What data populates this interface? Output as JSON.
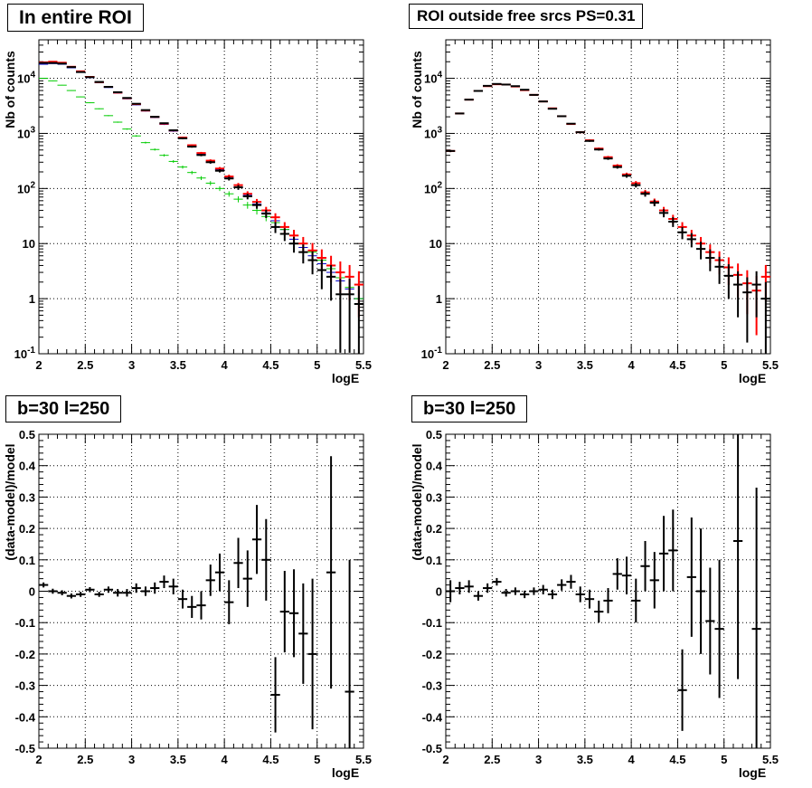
{
  "colors": {
    "data": "#000000",
    "total_model": "#ff0000",
    "blue_component": "#0000cc",
    "green_component": "#00cc00",
    "grid": "#000000"
  },
  "panels": [
    {
      "title": "In entire ROI",
      "xlabel": "logE",
      "ylabel": "Nb of counts"
    },
    {
      "title": "ROI outside free srcs PS=0.31",
      "xlabel": "logE",
      "ylabel": "Nb of counts"
    },
    {
      "title": "b=30 l=250",
      "xlabel": "logE",
      "ylabel": "(data-model)/model"
    },
    {
      "title": "b=30 l=250",
      "xlabel": "logE",
      "ylabel": "(data-model)/model"
    }
  ],
  "chart_data": [
    {
      "type": "scatter",
      "title": "In entire ROI",
      "xlabel": "logE",
      "ylabel": "Nb of counts",
      "xlim": [
        2,
        5.5
      ],
      "ylim": [
        0.1,
        50000
      ],
      "yscale": "log",
      "grid": true,
      "xticks": [
        "2",
        "2.5",
        "3",
        "3.5",
        "4",
        "4.5",
        "5",
        "5.5"
      ],
      "yticks": [
        "10^-1",
        "1",
        "10",
        "10^2",
        "10^3",
        "10^4"
      ],
      "bin_width": 0.1,
      "series": [
        {
          "role": "data",
          "color": "#000000",
          "errors": true,
          "x": [
            2.05,
            2.15,
            2.25,
            2.35,
            2.45,
            2.55,
            2.65,
            2.75,
            2.85,
            2.95,
            3.05,
            3.15,
            3.25,
            3.35,
            3.45,
            3.55,
            3.65,
            3.75,
            3.85,
            3.95,
            4.05,
            4.15,
            4.25,
            4.35,
            4.45,
            4.55,
            4.65,
            4.75,
            4.85,
            4.95,
            5.05,
            5.15,
            5.25,
            5.35,
            5.45
          ],
          "y": [
            19000,
            19000,
            18500,
            16000,
            13000,
            10500,
            8600,
            7000,
            5600,
            4400,
            3450,
            2650,
            2000,
            1530,
            1140,
            815,
            575,
            405,
            300,
            210,
            152,
            105,
            72,
            50,
            35,
            20,
            15,
            10,
            7,
            5,
            3.3,
            2.5,
            1.2,
            1.2,
            0.8
          ]
        },
        {
          "role": "total model",
          "color": "#ff0000",
          "errors": true,
          "x": [
            2.05,
            2.15,
            2.25,
            2.35,
            2.45,
            2.55,
            2.65,
            2.75,
            2.85,
            2.95,
            3.05,
            3.15,
            3.25,
            3.35,
            3.45,
            3.55,
            3.65,
            3.75,
            3.85,
            3.95,
            4.05,
            4.15,
            4.25,
            4.35,
            4.45,
            4.55,
            4.65,
            4.75,
            4.85,
            4.95,
            5.05,
            5.15,
            5.25,
            5.35,
            5.45
          ],
          "y": [
            19500,
            20000,
            19200,
            16200,
            13400,
            10600,
            8500,
            7000,
            5500,
            4350,
            3400,
            2600,
            1990,
            1500,
            1130,
            840,
            610,
            440,
            320,
            230,
            165,
            115,
            80,
            57,
            40,
            30,
            20,
            14,
            10,
            7.5,
            5.5,
            4,
            3,
            2.5,
            1.8
          ]
        },
        {
          "role": "blue component",
          "color": "#0000cc",
          "errors": true,
          "x": [
            2.05,
            2.15,
            2.25,
            2.35,
            2.45,
            2.55,
            2.65,
            2.75,
            2.85,
            2.95,
            3.05,
            3.15,
            3.25,
            3.35,
            3.45,
            3.55,
            3.65,
            3.75,
            3.85,
            3.95,
            4.05,
            4.15,
            4.25,
            4.35,
            4.45,
            4.55,
            4.65,
            4.75,
            4.85,
            4.95,
            5.05,
            5.15,
            5.25,
            5.35,
            5.45
          ],
          "y": [
            18000,
            18500,
            18000,
            15500,
            12800,
            10300,
            8300,
            6800,
            5400,
            4250,
            3300,
            2550,
            1940,
            1460,
            1100,
            810,
            590,
            420,
            300,
            220,
            155,
            105,
            75,
            52,
            36,
            26,
            18,
            12,
            8.5,
            6,
            4.3,
            3,
            2.1,
            1.5,
            1
          ]
        },
        {
          "role": "green component",
          "color": "#00cc00",
          "errors": true,
          "x": [
            2.05,
            2.15,
            2.25,
            2.35,
            2.45,
            2.55,
            2.65,
            2.75,
            2.85,
            2.95,
            3.05,
            3.15,
            3.25,
            3.35,
            3.45,
            3.55,
            3.65,
            3.75,
            3.85,
            3.95,
            4.05,
            4.15,
            4.25,
            4.35,
            4.45,
            4.55,
            4.65,
            4.75,
            4.85,
            4.95,
            5.05,
            5.15,
            5.25,
            5.35,
            5.45
          ],
          "y": [
            10000,
            9000,
            7500,
            6000,
            4600,
            3600,
            2800,
            2100,
            1600,
            1200,
            900,
            680,
            510,
            400,
            310,
            245,
            195,
            155,
            125,
            100,
            80,
            64,
            50,
            40,
            31,
            24,
            18,
            14,
            10,
            7,
            5,
            3.5,
            2.4,
            1.6,
            1
          ]
        }
      ]
    },
    {
      "type": "scatter",
      "title": "ROI outside free srcs PS=0.31",
      "xlabel": "logE",
      "ylabel": "Nb of counts",
      "xlim": [
        2,
        5.5
      ],
      "ylim": [
        0.1,
        50000
      ],
      "yscale": "log",
      "grid": true,
      "xticks": [
        "2",
        "2.5",
        "3",
        "3.5",
        "4",
        "4.5",
        "5",
        "5.5"
      ],
      "yticks": [
        "10^-1",
        "1",
        "10",
        "10^2",
        "10^3",
        "10^4"
      ],
      "bin_width": 0.1,
      "series": [
        {
          "role": "data",
          "color": "#000000",
          "errors": true,
          "x": [
            2.05,
            2.15,
            2.25,
            2.35,
            2.45,
            2.55,
            2.65,
            2.75,
            2.85,
            2.95,
            3.05,
            3.15,
            3.25,
            3.35,
            3.45,
            3.55,
            3.65,
            3.75,
            3.85,
            3.95,
            4.05,
            4.15,
            4.25,
            4.35,
            4.45,
            4.55,
            4.65,
            4.75,
            4.85,
            4.95,
            5.05,
            5.15,
            5.25,
            5.35,
            5.45
          ],
          "y": [
            480,
            2300,
            4100,
            5900,
            7300,
            7900,
            7700,
            7200,
            6200,
            5000,
            3800,
            2800,
            2050,
            1500,
            1050,
            730,
            510,
            350,
            245,
            170,
            115,
            80,
            55,
            36,
            25,
            16,
            12,
            8,
            5.5,
            3.8,
            2.6,
            1.8,
            1.3,
            1.8,
            1
          ]
        },
        {
          "role": "total model",
          "color": "#ff0000",
          "errors": true,
          "x": [
            2.05,
            2.15,
            2.25,
            2.35,
            2.45,
            2.55,
            2.65,
            2.75,
            2.85,
            2.95,
            3.05,
            3.15,
            3.25,
            3.35,
            3.45,
            3.55,
            3.65,
            3.75,
            3.85,
            3.95,
            4.05,
            4.15,
            4.25,
            4.35,
            4.45,
            4.55,
            4.65,
            4.75,
            4.85,
            4.95,
            5.05,
            5.15,
            5.25,
            5.35,
            5.45
          ],
          "y": [
            480,
            2300,
            4100,
            5900,
            7200,
            7800,
            7700,
            7100,
            6100,
            5000,
            3800,
            2850,
            2050,
            1480,
            1050,
            750,
            530,
            370,
            260,
            180,
            125,
            85,
            58,
            40,
            28,
            20,
            14,
            10,
            7,
            5,
            3.7,
            2.7,
            1.9,
            1.4,
            2.5
          ]
        }
      ]
    },
    {
      "type": "scatter",
      "title": "b=30 l=250",
      "xlabel": "logE",
      "ylabel": "(data-model)/model",
      "xlim": [
        2,
        5.5
      ],
      "ylim": [
        -0.5,
        0.5
      ],
      "grid": true,
      "xticks": [
        "2",
        "2.5",
        "3",
        "3.5",
        "4",
        "4.5",
        "5",
        "5.5"
      ],
      "yticks": [
        "-0.5",
        "-0.4",
        "-0.3",
        "-0.2",
        "-0.1",
        "0",
        "0.1",
        "0.2",
        "0.3",
        "0.4",
        "0.5"
      ],
      "bin_width": 0.1,
      "series": [
        {
          "role": "residual",
          "color": "#000000",
          "errors": true,
          "x": [
            2.05,
            2.15,
            2.25,
            2.35,
            2.45,
            2.55,
            2.65,
            2.75,
            2.85,
            2.95,
            3.05,
            3.15,
            3.25,
            3.35,
            3.45,
            3.55,
            3.65,
            3.75,
            3.85,
            3.95,
            4.05,
            4.15,
            4.25,
            4.35,
            4.45,
            4.55,
            4.65,
            4.75,
            4.85,
            4.95,
            5.05,
            5.15,
            5.25,
            5.35,
            5.45
          ],
          "y": [
            0.02,
            0.0,
            -0.005,
            -0.015,
            -0.01,
            0.005,
            -0.01,
            0.005,
            -0.005,
            -0.005,
            0.01,
            0.0,
            0.01,
            0.03,
            0.015,
            -0.025,
            -0.05,
            -0.045,
            0.035,
            0.06,
            -0.035,
            0.09,
            0.04,
            0.165,
            0.1,
            -0.33,
            -0.065,
            -0.07,
            -0.135,
            -0.2,
            null,
            0.06,
            null,
            -0.32,
            null
          ],
          "yerr": [
            0.008,
            0.008,
            0.008,
            0.008,
            0.008,
            0.008,
            0.008,
            0.01,
            0.012,
            0.012,
            0.015,
            0.015,
            0.018,
            0.02,
            0.025,
            0.03,
            0.035,
            0.045,
            0.05,
            0.06,
            0.07,
            0.08,
            0.09,
            0.11,
            0.13,
            0.12,
            0.13,
            0.14,
            0.16,
            0.24,
            null,
            0.37,
            null,
            0.42,
            null
          ]
        }
      ]
    },
    {
      "type": "scatter",
      "title": "b=30 l=250",
      "xlabel": "logE",
      "ylabel": "(data-model)/model",
      "xlim": [
        2,
        5.5
      ],
      "ylim": [
        -0.5,
        0.5
      ],
      "grid": true,
      "xticks": [
        "2",
        "2.5",
        "3",
        "3.5",
        "4",
        "4.5",
        "5",
        "5.5"
      ],
      "yticks": [
        "-0.5",
        "-0.4",
        "-0.3",
        "-0.2",
        "-0.1",
        "0",
        "0.1",
        "0.2",
        "0.3",
        "0.4",
        "0.5"
      ],
      "bin_width": 0.1,
      "series": [
        {
          "role": "residual",
          "color": "#000000",
          "errors": true,
          "x": [
            2.05,
            2.15,
            2.25,
            2.35,
            2.45,
            2.55,
            2.65,
            2.75,
            2.85,
            2.95,
            3.05,
            3.15,
            3.25,
            3.35,
            3.45,
            3.55,
            3.65,
            3.75,
            3.85,
            3.95,
            4.05,
            4.15,
            4.25,
            4.35,
            4.45,
            4.55,
            4.65,
            4.75,
            4.85,
            4.95,
            5.05,
            5.15,
            5.25,
            5.35,
            5.45
          ],
          "y": [
            0.0,
            0.01,
            0.015,
            -0.015,
            0.01,
            0.03,
            -0.005,
            0.0,
            -0.01,
            0.0,
            0.005,
            -0.01,
            0.02,
            0.03,
            -0.01,
            -0.025,
            -0.065,
            -0.03,
            0.055,
            0.05,
            -0.03,
            0.08,
            0.035,
            0.12,
            0.13,
            -0.315,
            0.045,
            0.0,
            -0.095,
            -0.12,
            null,
            0.16,
            null,
            -0.12,
            null
          ],
          "yerr": [
            0.035,
            0.02,
            0.02,
            0.015,
            0.015,
            0.012,
            0.012,
            0.012,
            0.012,
            0.012,
            0.015,
            0.015,
            0.018,
            0.022,
            0.025,
            0.03,
            0.035,
            0.04,
            0.05,
            0.06,
            0.07,
            0.08,
            0.09,
            0.12,
            0.13,
            0.13,
            0.19,
            0.2,
            0.17,
            0.22,
            null,
            0.44,
            null,
            0.45,
            null
          ]
        }
      ]
    }
  ]
}
